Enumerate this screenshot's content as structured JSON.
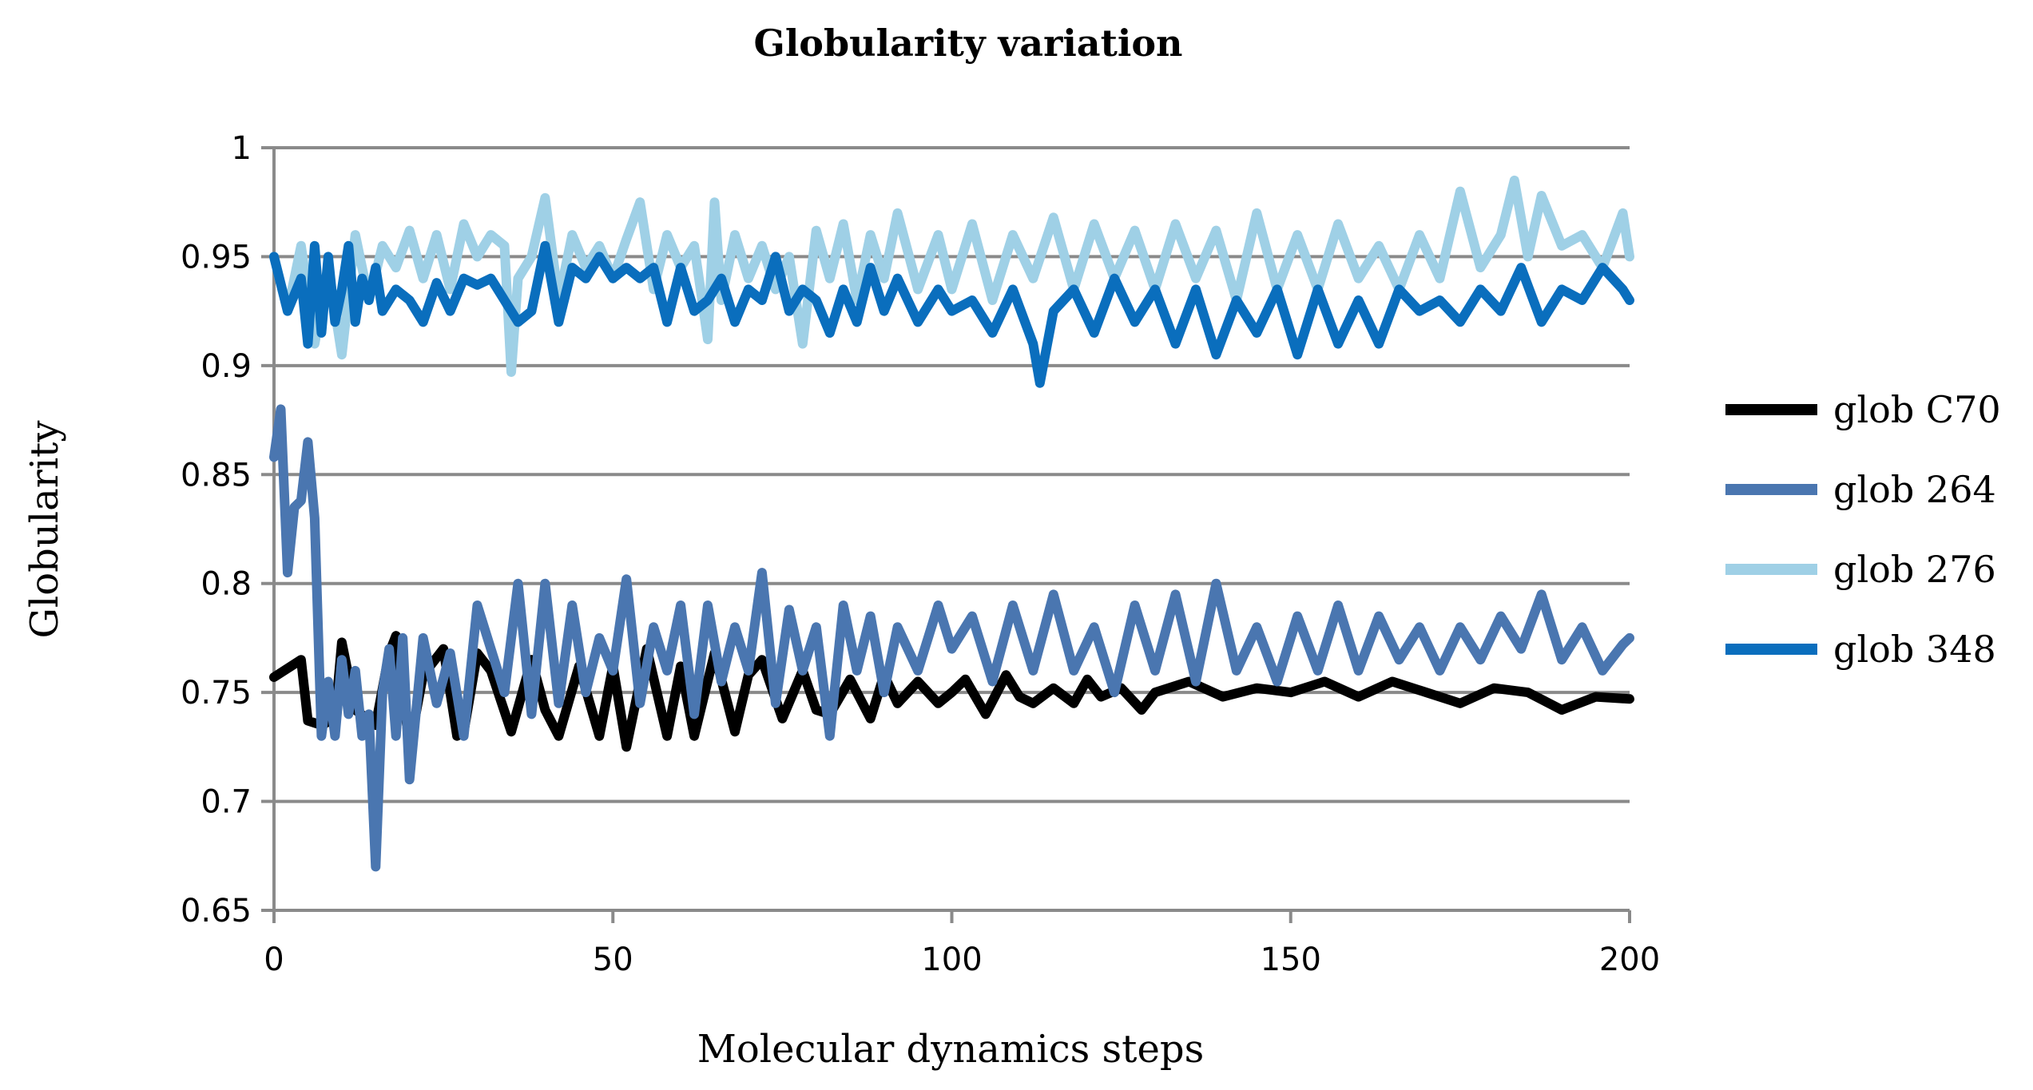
{
  "chart_data": {
    "type": "line",
    "title": "Globularity variation",
    "xlabel": "Molecular dynamics steps",
    "ylabel": "Globularity",
    "xlim": [
      0,
      200
    ],
    "ylim": [
      0.65,
      1
    ],
    "xticks": [
      0,
      50,
      100,
      150,
      200
    ],
    "yticks": [
      0.65,
      0.7,
      0.75,
      0.8,
      0.85,
      0.9,
      0.95,
      1
    ],
    "ytick_labels": [
      "0.65",
      "0.7",
      "0.75",
      "0.8",
      "0.85",
      "0.9",
      "0.95",
      "1"
    ],
    "grid": "horizontal",
    "legend_position": "right",
    "series": [
      {
        "name": "glob C70",
        "color": "#000000",
        "x": [
          0,
          4,
          5,
          7,
          9,
          10,
          12,
          15,
          17,
          18,
          20,
          22,
          25,
          27,
          28,
          30,
          32,
          35,
          38,
          40,
          42,
          45,
          48,
          50,
          52,
          55,
          58,
          60,
          62,
          65,
          68,
          70,
          72,
          75,
          78,
          80,
          82,
          85,
          88,
          90,
          92,
          95,
          98,
          100,
          102,
          105,
          108,
          110,
          112,
          115,
          118,
          120,
          122,
          125,
          128,
          130,
          135,
          140,
          145,
          150,
          155,
          160,
          165,
          170,
          175,
          180,
          185,
          190,
          195,
          200
        ],
        "values": [
          0.757,
          0.765,
          0.737,
          0.735,
          0.738,
          0.773,
          0.742,
          0.735,
          0.768,
          0.776,
          0.725,
          0.758,
          0.77,
          0.73,
          0.732,
          0.768,
          0.76,
          0.732,
          0.765,
          0.742,
          0.73,
          0.762,
          0.73,
          0.762,
          0.725,
          0.77,
          0.73,
          0.762,
          0.73,
          0.768,
          0.732,
          0.758,
          0.765,
          0.738,
          0.76,
          0.742,
          0.74,
          0.756,
          0.738,
          0.758,
          0.745,
          0.755,
          0.745,
          0.75,
          0.756,
          0.74,
          0.758,
          0.748,
          0.745,
          0.752,
          0.745,
          0.756,
          0.748,
          0.752,
          0.742,
          0.75,
          0.755,
          0.748,
          0.752,
          0.75,
          0.755,
          0.748,
          0.755,
          0.75,
          0.745,
          0.752,
          0.75,
          0.742,
          0.748,
          0.747
        ]
      },
      {
        "name": "glob 264",
        "color": "#4a76b0",
        "x": [
          0,
          1,
          2,
          3,
          4,
          5,
          6,
          7,
          8,
          9,
          10,
          11,
          12,
          13,
          14,
          15,
          16,
          17,
          18,
          19,
          20,
          22,
          24,
          26,
          28,
          30,
          32,
          34,
          36,
          38,
          40,
          42,
          44,
          46,
          48,
          50,
          52,
          54,
          56,
          58,
          60,
          62,
          64,
          66,
          68,
          70,
          72,
          74,
          76,
          78,
          80,
          82,
          84,
          86,
          88,
          90,
          92,
          95,
          98,
          100,
          103,
          106,
          109,
          112,
          115,
          118,
          121,
          124,
          127,
          130,
          133,
          136,
          139,
          142,
          145,
          148,
          151,
          154,
          157,
          160,
          163,
          166,
          169,
          172,
          175,
          178,
          181,
          184,
          187,
          190,
          193,
          196,
          199,
          200
        ],
        "values": [
          0.858,
          0.88,
          0.805,
          0.835,
          0.838,
          0.865,
          0.83,
          0.73,
          0.755,
          0.73,
          0.765,
          0.74,
          0.76,
          0.73,
          0.74,
          0.67,
          0.75,
          0.77,
          0.73,
          0.775,
          0.71,
          0.775,
          0.745,
          0.768,
          0.73,
          0.79,
          0.77,
          0.75,
          0.8,
          0.74,
          0.8,
          0.745,
          0.79,
          0.75,
          0.775,
          0.76,
          0.802,
          0.745,
          0.78,
          0.76,
          0.79,
          0.74,
          0.79,
          0.755,
          0.78,
          0.76,
          0.805,
          0.745,
          0.788,
          0.76,
          0.78,
          0.73,
          0.79,
          0.76,
          0.785,
          0.75,
          0.78,
          0.76,
          0.79,
          0.77,
          0.785,
          0.755,
          0.79,
          0.76,
          0.795,
          0.76,
          0.78,
          0.75,
          0.79,
          0.76,
          0.795,
          0.755,
          0.8,
          0.76,
          0.78,
          0.755,
          0.785,
          0.76,
          0.79,
          0.76,
          0.785,
          0.765,
          0.78,
          0.76,
          0.78,
          0.765,
          0.785,
          0.77,
          0.795,
          0.765,
          0.78,
          0.76,
          0.772,
          0.775
        ]
      },
      {
        "name": "glob 276",
        "color": "#9fd0e6",
        "x": [
          0,
          2,
          4,
          6,
          8,
          10,
          12,
          14,
          16,
          18,
          20,
          22,
          24,
          26,
          28,
          30,
          32,
          34,
          35,
          36,
          38,
          40,
          42,
          44,
          46,
          48,
          50,
          52,
          54,
          56,
          58,
          60,
          62,
          64,
          65,
          66,
          68,
          70,
          72,
          74,
          76,
          78,
          80,
          82,
          84,
          86,
          88,
          90,
          92,
          95,
          98,
          100,
          103,
          106,
          109,
          112,
          115,
          118,
          121,
          124,
          127,
          130,
          133,
          136,
          139,
          142,
          145,
          148,
          151,
          154,
          157,
          160,
          163,
          166,
          169,
          172,
          175,
          178,
          181,
          183,
          185,
          187,
          190,
          193,
          196,
          199,
          200
        ],
        "values": [
          0.95,
          0.925,
          0.955,
          0.91,
          0.945,
          0.905,
          0.96,
          0.93,
          0.955,
          0.945,
          0.962,
          0.94,
          0.96,
          0.935,
          0.965,
          0.95,
          0.96,
          0.955,
          0.897,
          0.94,
          0.95,
          0.977,
          0.93,
          0.96,
          0.945,
          0.955,
          0.94,
          0.958,
          0.975,
          0.935,
          0.96,
          0.945,
          0.955,
          0.912,
          0.975,
          0.93,
          0.96,
          0.94,
          0.955,
          0.935,
          0.95,
          0.91,
          0.962,
          0.94,
          0.965,
          0.93,
          0.96,
          0.94,
          0.97,
          0.935,
          0.96,
          0.935,
          0.965,
          0.93,
          0.96,
          0.94,
          0.968,
          0.935,
          0.965,
          0.94,
          0.962,
          0.935,
          0.965,
          0.94,
          0.962,
          0.93,
          0.97,
          0.935,
          0.96,
          0.935,
          0.965,
          0.94,
          0.955,
          0.935,
          0.96,
          0.94,
          0.98,
          0.945,
          0.96,
          0.985,
          0.95,
          0.978,
          0.955,
          0.96,
          0.945,
          0.97,
          0.95
        ]
      },
      {
        "name": "glob 348",
        "color": "#0a6ebd",
        "x": [
          0,
          2,
          4,
          5,
          6,
          7,
          8,
          9,
          10,
          11,
          12,
          13,
          14,
          15,
          16,
          18,
          20,
          22,
          24,
          26,
          28,
          30,
          32,
          34,
          36,
          38,
          40,
          42,
          44,
          46,
          48,
          50,
          52,
          54,
          56,
          58,
          60,
          62,
          64,
          66,
          68,
          70,
          72,
          74,
          76,
          78,
          80,
          82,
          84,
          86,
          88,
          90,
          92,
          95,
          98,
          100,
          103,
          106,
          109,
          112,
          113,
          115,
          118,
          121,
          124,
          127,
          130,
          133,
          136,
          139,
          142,
          145,
          148,
          151,
          154,
          157,
          160,
          163,
          166,
          169,
          172,
          175,
          178,
          181,
          184,
          187,
          190,
          193,
          196,
          199,
          200
        ],
        "values": [
          0.95,
          0.925,
          0.94,
          0.91,
          0.955,
          0.915,
          0.95,
          0.92,
          0.935,
          0.955,
          0.92,
          0.94,
          0.93,
          0.945,
          0.925,
          0.935,
          0.93,
          0.92,
          0.938,
          0.925,
          0.94,
          0.937,
          0.94,
          0.93,
          0.92,
          0.925,
          0.955,
          0.92,
          0.945,
          0.94,
          0.95,
          0.94,
          0.945,
          0.94,
          0.945,
          0.92,
          0.945,
          0.925,
          0.93,
          0.94,
          0.92,
          0.935,
          0.93,
          0.95,
          0.925,
          0.935,
          0.93,
          0.915,
          0.935,
          0.92,
          0.945,
          0.925,
          0.94,
          0.92,
          0.935,
          0.925,
          0.93,
          0.915,
          0.935,
          0.91,
          0.892,
          0.925,
          0.935,
          0.915,
          0.94,
          0.92,
          0.935,
          0.91,
          0.935,
          0.905,
          0.93,
          0.915,
          0.935,
          0.905,
          0.935,
          0.91,
          0.93,
          0.91,
          0.935,
          0.925,
          0.93,
          0.92,
          0.935,
          0.925,
          0.945,
          0.92,
          0.935,
          0.93,
          0.945,
          0.935,
          0.93
        ]
      }
    ]
  }
}
